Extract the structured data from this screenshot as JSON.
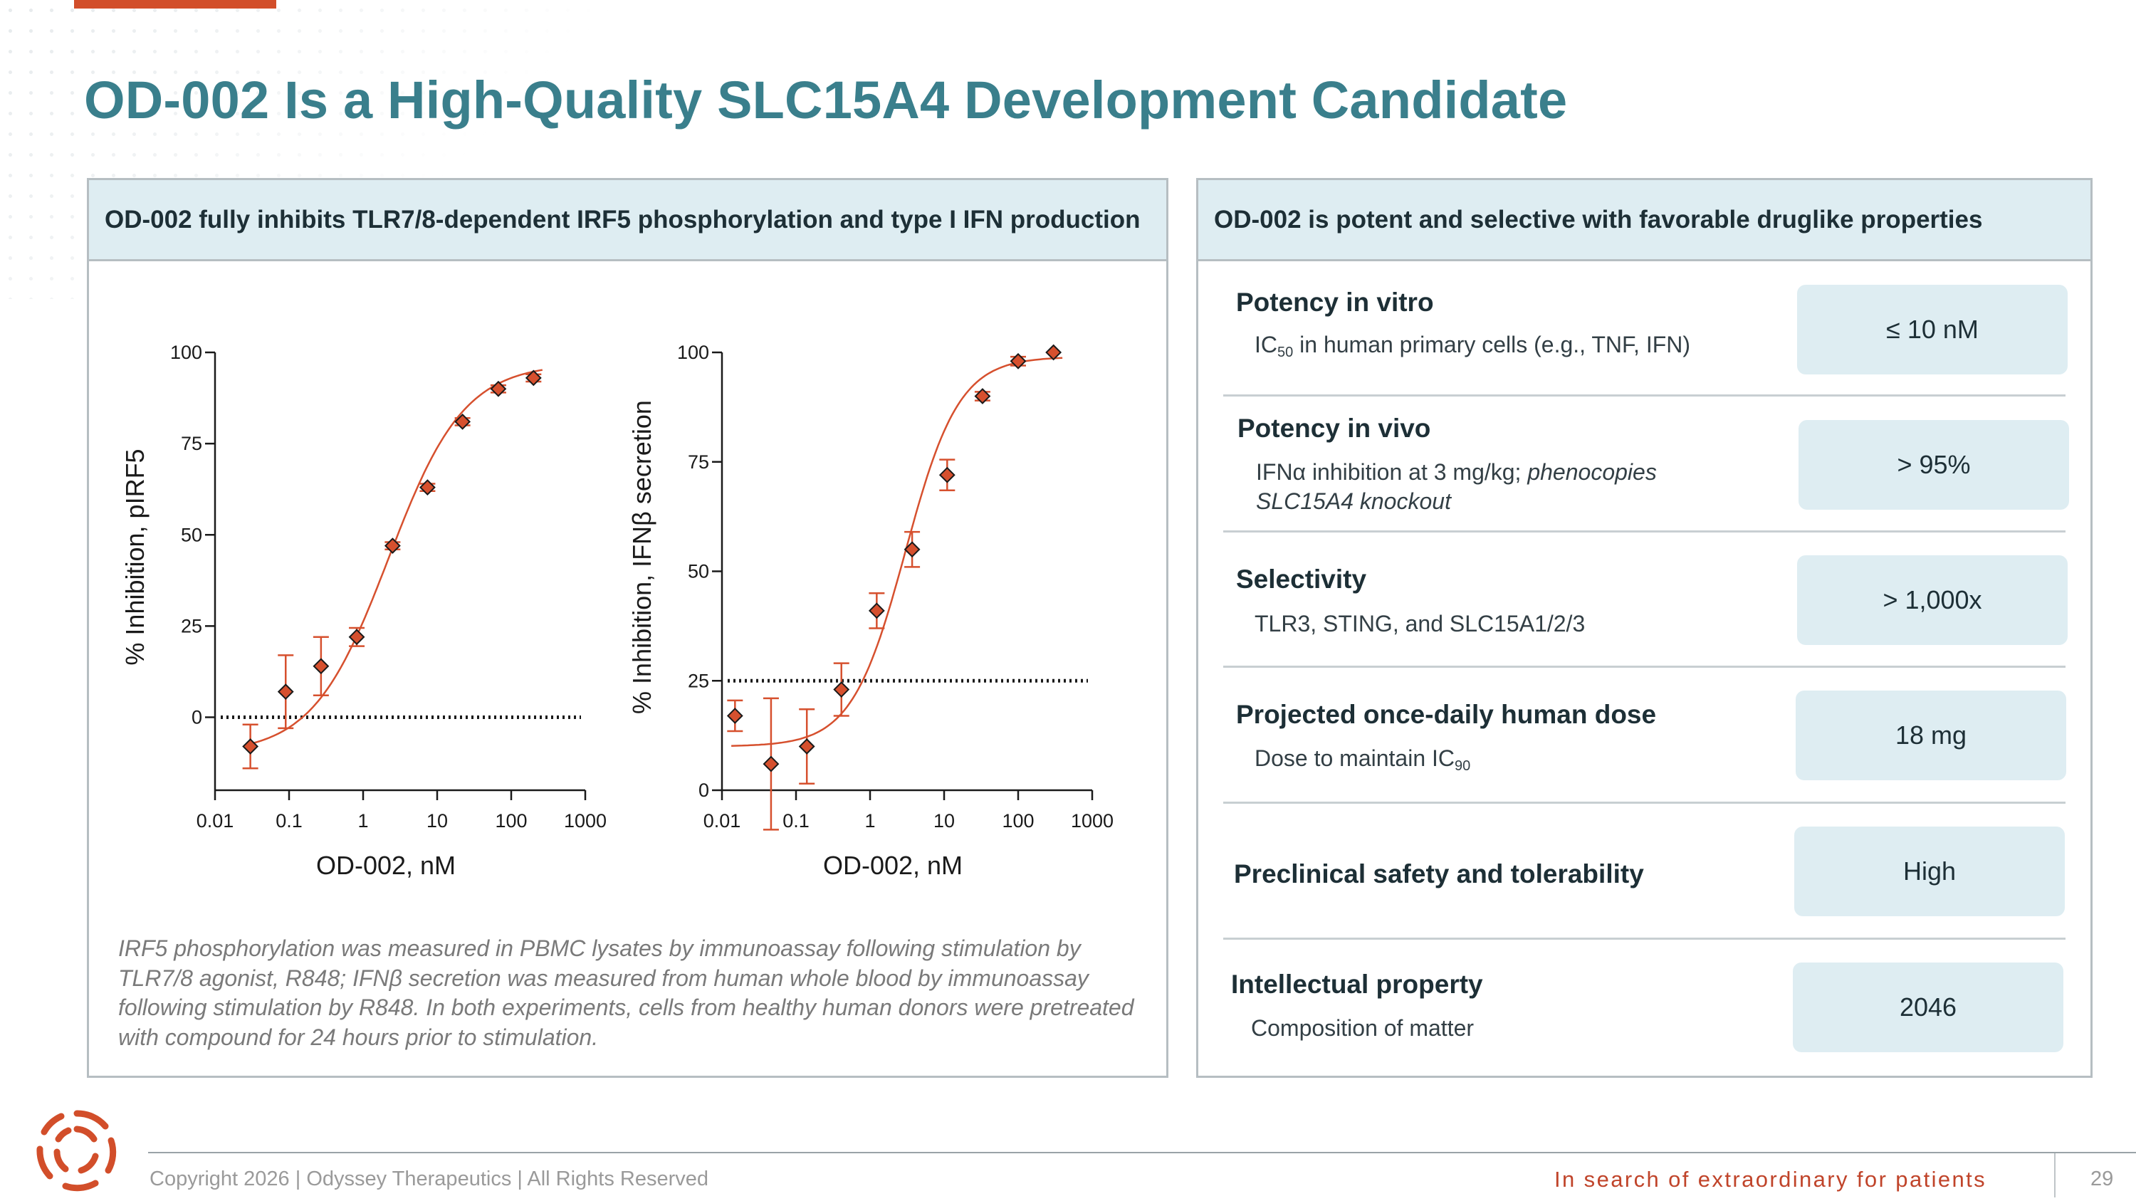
{
  "slide": {
    "title": "OD-002 Is a High-Quality SLC15A4 Development Candidate",
    "accent_color": "#d24e2a",
    "title_color": "#3a7f8c"
  },
  "left_panel": {
    "header": "OD-002 fully inhibits TLR7/8-dependent IRF5 phosphorylation and type I IFN production",
    "caption": "IRF5 phosphorylation was measured in PBMC lysates by immunoassay following stimulation by TLR7/8 agonist, R848; IFNβ secretion was measured from human whole blood by immunoassay following stimulation by R848. In both experiments, cells from healthy human donors were pretreated with compound for 24 hours prior to stimulation."
  },
  "chart_data": [
    {
      "type": "scatter",
      "xscale": "log",
      "xlabel": "OD-002, nM",
      "ylabel": "% Inhibition, pIRF5",
      "xlim": [
        0.01,
        1000
      ],
      "ylim": [
        -20,
        100
      ],
      "xticks": [
        "0.01",
        "0.1",
        "1",
        "10",
        "100",
        "1000"
      ],
      "yticks": [
        "0",
        "25",
        "50",
        "75",
        "100"
      ],
      "reference_line_y": 0,
      "marker_color": "#d6502e",
      "points": [
        {
          "x": 0.03,
          "y": -8,
          "err": 6
        },
        {
          "x": 0.09,
          "y": 7,
          "err": 10
        },
        {
          "x": 0.27,
          "y": 14,
          "err": 8
        },
        {
          "x": 0.82,
          "y": 22,
          "err": 2.5
        },
        {
          "x": 2.5,
          "y": 47,
          "err": 1
        },
        {
          "x": 7.4,
          "y": 63,
          "err": 1
        },
        {
          "x": 22,
          "y": 81,
          "err": 1
        },
        {
          "x": 67,
          "y": 90,
          "err": 1
        },
        {
          "x": 200,
          "y": 93,
          "err": 1
        }
      ],
      "fit": {
        "bottom": -10,
        "top": 97,
        "ic50": 2.2,
        "hill": 0.85
      }
    },
    {
      "type": "scatter",
      "xscale": "log",
      "xlabel": "OD-002, nM",
      "ylabel": "% Inhibition, IFNβ secretion",
      "xlim": [
        0.01,
        1000
      ],
      "ylim": [
        0,
        100
      ],
      "xticks": [
        "0.01",
        "0.1",
        "1",
        "10",
        "100",
        "1000"
      ],
      "yticks": [
        "0",
        "25",
        "50",
        "75",
        "100"
      ],
      "reference_line_y": 25,
      "marker_color": "#d6502e",
      "points": [
        {
          "x": 0.015,
          "y": 17,
          "err": 3.5
        },
        {
          "x": 0.046,
          "y": 6,
          "err": 15
        },
        {
          "x": 0.14,
          "y": 10,
          "err": 8.5
        },
        {
          "x": 0.41,
          "y": 23,
          "err": 6
        },
        {
          "x": 1.23,
          "y": 41,
          "err": 4
        },
        {
          "x": 3.7,
          "y": 55,
          "err": 4
        },
        {
          "x": 11,
          "y": 72,
          "err": 3.5
        },
        {
          "x": 33,
          "y": 90,
          "err": 1
        },
        {
          "x": 100,
          "y": 98,
          "err": 1
        },
        {
          "x": 300,
          "y": 100,
          "err": 0
        }
      ],
      "fit": {
        "bottom": 10,
        "top": 99,
        "ic50": 3.0,
        "hill": 1.2
      }
    }
  ],
  "right_panel": {
    "header": "OD-002 is potent and selective with favorable druglike properties",
    "rows": [
      {
        "title": "Potency in vitro",
        "sub_pre": "IC",
        "sub_subscript": "50",
        "sub_post": " in human primary cells (e.g., TNF, IFN)",
        "value": "≤ 10 nM"
      },
      {
        "title": "Potency in vivo",
        "sub_pre": "IFNα inhibition at 3 mg/kg; ",
        "sub_italic": "phenocopies",
        "sub_line2": "SLC15A4 knockout",
        "value": "> 95%"
      },
      {
        "title": "Selectivity",
        "sub": "TLR3, STING, and SLC15A1/2/3",
        "value": "> 1,000x"
      },
      {
        "title": "Projected once-daily human dose",
        "sub_pre": "Dose to maintain IC",
        "sub_subscript": "90",
        "value": "18 mg"
      },
      {
        "title": "Preclinical safety and tolerability",
        "value": "High"
      },
      {
        "title": "Intellectual property",
        "sub": "Composition of matter",
        "value": "2046"
      }
    ]
  },
  "footer": {
    "copyright": "Copyright 2026  |  Odyssey Therapeutics  |  All Rights Reserved",
    "tagline": "In search of extraordinary for patients",
    "page_number": "29"
  },
  "icons": {
    "logo": "odyssey-swirl-logo-icon"
  }
}
